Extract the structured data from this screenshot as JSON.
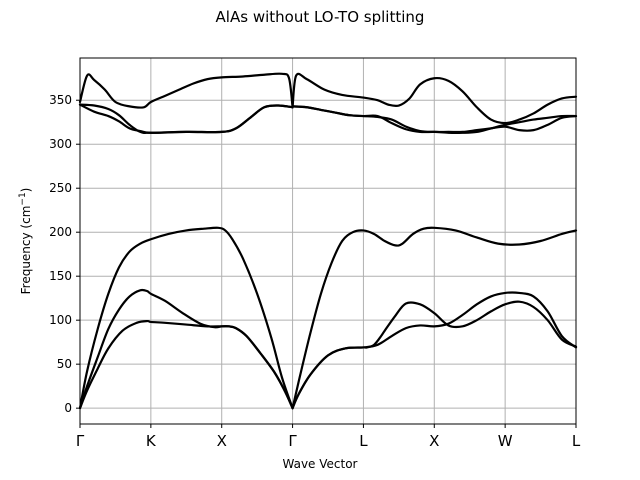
{
  "chart_data": {
    "type": "line",
    "title": "AlAs without LO-TO splitting",
    "xlabel": "Wave Vector",
    "ylabel": "Frequency (cm",
    "ylabel_sup": "−1",
    "ylabel_end": ")",
    "ylim": [
      -18,
      398
    ],
    "xlim": [
      0,
      7
    ],
    "grid": true,
    "yticks": [
      0,
      50,
      100,
      150,
      200,
      250,
      300,
      350
    ],
    "xticks": [
      {
        "x": 0,
        "label": "Γ"
      },
      {
        "x": 1,
        "label": "K"
      },
      {
        "x": 2,
        "label": "X"
      },
      {
        "x": 3,
        "label": "Γ"
      },
      {
        "x": 4,
        "label": "L"
      },
      {
        "x": 5,
        "label": "X"
      },
      {
        "x": 6,
        "label": "W"
      },
      {
        "x": 7,
        "label": "L"
      }
    ],
    "series": [
      {
        "x": [
          0,
          0.1,
          0.25,
          0.4,
          0.6,
          0.8,
          0.95,
          1.0,
          1.2,
          1.5,
          1.8,
          2.0,
          2.1,
          2.2,
          2.35,
          2.55,
          2.75,
          2.9,
          3.0
        ],
        "values": [
          0,
          20,
          45,
          68,
          88,
          97,
          99,
          98,
          97,
          95,
          93,
          93,
          93,
          91,
          82,
          62,
          40,
          18,
          0
        ]
      },
      {
        "x": [
          0,
          0.1,
          0.25,
          0.4,
          0.55,
          0.7,
          0.85,
          0.95,
          1.0,
          1.2,
          1.45,
          1.7,
          1.9,
          2.0,
          2.1,
          2.2,
          2.35,
          2.55,
          2.75,
          2.9,
          3.0
        ],
        "values": [
          0,
          25,
          58,
          90,
          112,
          127,
          134,
          133,
          130,
          122,
          108,
          96,
          92,
          93,
          93,
          91,
          82,
          62,
          40,
          18,
          0
        ]
      },
      {
        "x": [
          0,
          0.1,
          0.25,
          0.4,
          0.55,
          0.7,
          0.85,
          1.0,
          1.25,
          1.5,
          1.75,
          1.95,
          2.05,
          2.15,
          2.3,
          2.5,
          2.7,
          2.85,
          3.0
        ],
        "values": [
          0,
          42,
          90,
          130,
          160,
          178,
          187,
          192,
          198,
          202,
          204,
          205,
          202,
          192,
          170,
          130,
          80,
          35,
          0
        ]
      },
      {
        "x": [
          0,
          0.2,
          0.4,
          0.55,
          0.7,
          0.85,
          1.0,
          1.5,
          2.0,
          2.2,
          2.4,
          2.6,
          2.8,
          3.0
        ],
        "values": [
          345,
          344,
          340,
          333,
          322,
          314,
          313,
          314,
          314,
          318,
          330,
          342,
          344,
          342
        ]
      },
      {
        "x": [
          0,
          0.2,
          0.4,
          0.55,
          0.7,
          0.85,
          1.0,
          1.5,
          2.0,
          2.2,
          2.4,
          2.6,
          2.8,
          3.0
        ],
        "values": [
          345,
          337,
          332,
          326,
          318,
          315,
          313,
          314,
          314,
          318,
          330,
          342,
          344,
          342
        ]
      },
      {
        "x": [
          0,
          0.1,
          0.2,
          0.35,
          0.5,
          0.7,
          0.9,
          1.0,
          1.2,
          1.4,
          1.6,
          1.8,
          2.0,
          2.3,
          2.6,
          2.85,
          2.95,
          3.0
        ],
        "values": [
          348,
          378,
          373,
          362,
          348,
          343,
          342,
          348,
          355,
          362,
          369,
          374,
          376,
          377,
          379,
          380,
          375,
          342
        ]
      },
      {
        "x": [
          3.0,
          3.08,
          3.25,
          3.5,
          3.75,
          4.0,
          4.05,
          4.15,
          4.25,
          4.3,
          4.45,
          4.6,
          4.8,
          5.0,
          5.2,
          5.4,
          5.6,
          5.8,
          6.0,
          6.2,
          6.4,
          6.6,
          6.8,
          7.0
        ],
        "values": [
          0,
          15,
          38,
          60,
          68,
          69,
          69,
          72,
          82,
          88,
          105,
          119,
          118,
          108,
          94,
          93,
          100,
          110,
          118,
          121,
          115,
          100,
          78,
          70
        ]
      },
      {
        "x": [
          3.0,
          3.08,
          3.25,
          3.5,
          3.75,
          4.0,
          4.2,
          4.4,
          4.6,
          4.8,
          5.0,
          5.2,
          5.4,
          5.6,
          5.8,
          6.0,
          6.2,
          6.4,
          6.6,
          6.8,
          7.0
        ],
        "values": [
          0,
          15,
          38,
          60,
          68,
          69,
          72,
          82,
          91,
          94,
          93,
          96,
          106,
          118,
          127,
          131,
          131,
          127,
          110,
          82,
          69
        ]
      },
      {
        "x": [
          3.0,
          3.1,
          3.25,
          3.4,
          3.55,
          3.7,
          3.85,
          4.0,
          4.15,
          4.3,
          4.45,
          4.55,
          4.7,
          4.85,
          5.0,
          5.3,
          5.6,
          5.9,
          6.2,
          6.5,
          6.8,
          7.0
        ],
        "values": [
          0,
          35,
          85,
          130,
          165,
          190,
          200,
          202,
          198,
          190,
          185,
          187,
          198,
          204,
          205,
          202,
          194,
          187,
          186,
          190,
          198,
          202
        ]
      },
      {
        "x": [
          3.0,
          3.2,
          3.4,
          3.6,
          3.8,
          4.0,
          4.2,
          4.4,
          4.6,
          4.8,
          5.0,
          5.2,
          5.4,
          5.6,
          5.8,
          6.0,
          6.2,
          6.4,
          6.6,
          6.8,
          7.0
        ],
        "values": [
          343,
          342,
          339,
          336,
          333,
          332,
          331,
          328,
          320,
          315,
          314,
          314,
          314,
          316,
          318,
          320,
          316,
          316,
          322,
          330,
          332
        ]
      },
      {
        "x": [
          3.0,
          3.2,
          3.4,
          3.6,
          3.8,
          4.0,
          4.2,
          4.4,
          4.6,
          4.8,
          5.0,
          5.2,
          5.4,
          5.6,
          5.8,
          6.0,
          6.2,
          6.4,
          6.6,
          6.8,
          7.0
        ],
        "values": [
          343,
          342,
          339,
          336,
          333,
          332,
          332,
          324,
          317,
          314,
          314,
          313,
          313,
          314,
          318,
          322,
          325,
          328,
          330,
          332,
          332
        ]
      },
      {
        "x": [
          3.0,
          3.05,
          3.2,
          3.45,
          3.7,
          4.0,
          4.2,
          4.35,
          4.5,
          4.65,
          4.8,
          5.0,
          5.2,
          5.4,
          5.6,
          5.8,
          6.0,
          6.2,
          6.4,
          6.6,
          6.8,
          7.0
        ],
        "values": [
          342,
          378,
          374,
          362,
          356,
          353,
          350,
          345,
          344,
          352,
          368,
          375,
          372,
          360,
          342,
          328,
          324,
          328,
          335,
          345,
          352,
          354
        ]
      }
    ]
  }
}
